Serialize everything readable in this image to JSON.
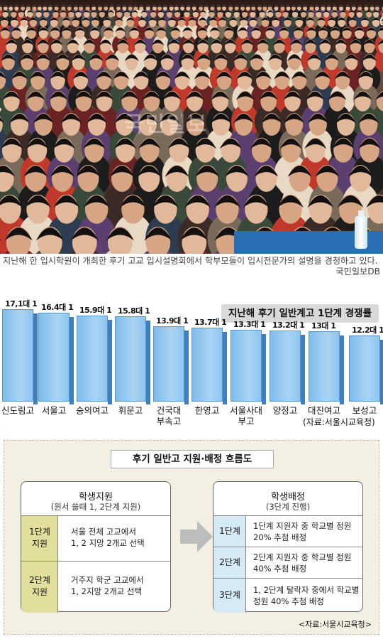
{
  "photo": {
    "watermark": "국민일보"
  },
  "caption": {
    "text": "지난해 한 입시학원이 개최한 후기 고교 입시설명회에서 학부모들이 입시전문가의 설명을 경청하고 있다.",
    "credit": "국민일보DB"
  },
  "chart_data": {
    "type": "bar",
    "title": "지난해 후기 일반계고 1단계 경쟁률",
    "categories": [
      "신도림고",
      "서울고",
      "숭의여고",
      "휘문고",
      "건국대\n부속고",
      "한영고",
      "서울사대\n부고",
      "양정고",
      "대진여고",
      "보성고"
    ],
    "values": [
      17.1,
      16.4,
      15.9,
      15.8,
      13.9,
      13.7,
      13.3,
      13.2,
      13.0,
      12.2
    ],
    "value_labels": [
      "17,1대 1",
      "16.4대 1",
      "15.9대 1",
      "15.8대 1",
      "13.9대 1",
      "13.7대 1",
      "13.3대 1",
      "13.2대 1",
      "13대 1",
      "12.2대 1"
    ],
    "source": "(자료:서울시교육청)",
    "color": "#8fc5ee"
  },
  "flow": {
    "title": "후기 일반고 지원·배정 흐름도",
    "left": {
      "heading": "학생지원",
      "subheading": "(원서 쓸때 1, 2단계 지원)",
      "rows": [
        {
          "stage": "1단계\n지원",
          "desc": "서울 전체 고교에서\n1, 2 지망 2개교 선택"
        },
        {
          "stage": "2단계\n지원",
          "desc": "거주지 학군 고교에서\n1, 2지망 2개교 선택"
        }
      ],
      "stage_color": "#e2df9c"
    },
    "right": {
      "heading": "학생배정",
      "subheading": "(3단계 진행)",
      "rows": [
        {
          "stage": "1단계",
          "desc": "1단계 지원자 중 학교별 정원\n20% 추첨 배정"
        },
        {
          "stage": "2단계",
          "desc": "2단계 지원자 중 학교별 정원\n40% 추첨 배정"
        },
        {
          "stage": "3단계",
          "desc": "1, 2단계 탈락자 중에서 학교별\n정원 40% 추첨 배정"
        }
      ],
      "stage_color": "#d6eaf5"
    },
    "source": "<자료:서울시교육청>"
  }
}
